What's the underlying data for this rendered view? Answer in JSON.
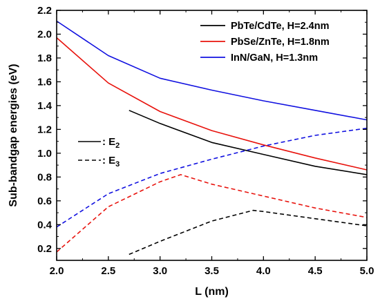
{
  "chart_data": {
    "type": "line",
    "xlabel": "L (nm)",
    "ylabel": "Sub-bandgap energies (eV)",
    "xlim": [
      2.0,
      5.0
    ],
    "ylim": [
      0.1,
      2.2
    ],
    "x_ticks": [
      "2.0",
      "2.5",
      "3.0",
      "3.5",
      "4.0",
      "4.5",
      "5.0"
    ],
    "y_ticks": [
      "0.2",
      "0.4",
      "0.6",
      "0.8",
      "1.0",
      "1.2",
      "1.4",
      "1.6",
      "1.8",
      "2.0",
      "2.2"
    ],
    "grid": false,
    "legend": {
      "placement": "top-right",
      "entries": [
        {
          "label": "PbTe/CdTe, H=2.4nm",
          "color": "#000000"
        },
        {
          "label": "PbSe/ZnTe, H=1.8nm",
          "color": "#e8120c"
        },
        {
          "label": "InN/GaN, H=1.3nm",
          "color": "#1010e0"
        }
      ]
    },
    "line_style_legend": {
      "placement": "middle-left",
      "entries": [
        {
          "label": ": E",
          "subscript": "2",
          "style": "solid"
        },
        {
          "label": ": E",
          "subscript": "3",
          "style": "dashed"
        }
      ]
    },
    "series": [
      {
        "name": "PbTe/CdTe, H=2.4nm",
        "level": "E2",
        "color": "#000000",
        "style": "solid",
        "x": [
          2.7,
          3.0,
          3.5,
          4.0,
          4.5,
          5.0
        ],
        "y": [
          1.36,
          1.25,
          1.09,
          0.99,
          0.89,
          0.82
        ]
      },
      {
        "name": "PbTe/CdTe, H=2.4nm",
        "level": "E3",
        "color": "#000000",
        "style": "dashed",
        "x": [
          2.7,
          3.0,
          3.5,
          3.9,
          4.0,
          4.5,
          5.0
        ],
        "y": [
          0.15,
          0.26,
          0.43,
          0.52,
          0.51,
          0.45,
          0.39
        ]
      },
      {
        "name": "PbSe/ZnTe, H=1.8nm",
        "level": "E2",
        "color": "#e8120c",
        "style": "solid",
        "x": [
          2.0,
          2.5,
          3.0,
          3.5,
          4.0,
          4.5,
          5.0
        ],
        "y": [
          1.97,
          1.59,
          1.35,
          1.19,
          1.07,
          0.96,
          0.86
        ]
      },
      {
        "name": "PbSe/ZnTe, H=1.8nm",
        "level": "E3",
        "color": "#e8120c",
        "style": "dashed",
        "x": [
          2.0,
          2.5,
          3.0,
          3.2,
          3.5,
          4.0,
          4.5,
          5.0
        ],
        "y": [
          0.17,
          0.55,
          0.76,
          0.82,
          0.74,
          0.64,
          0.54,
          0.46
        ]
      },
      {
        "name": "InN/GaN, H=1.3nm",
        "level": "E2",
        "color": "#1010e0",
        "style": "solid",
        "x": [
          2.0,
          2.5,
          3.0,
          3.5,
          4.0,
          4.5,
          5.0
        ],
        "y": [
          2.11,
          1.82,
          1.63,
          1.53,
          1.44,
          1.36,
          1.28
        ]
      },
      {
        "name": "InN/GaN, H=1.3nm",
        "level": "E3",
        "color": "#1010e0",
        "style": "dashed",
        "x": [
          2.0,
          2.5,
          3.0,
          3.5,
          4.0,
          4.5,
          5.0
        ],
        "y": [
          0.38,
          0.66,
          0.83,
          0.95,
          1.06,
          1.15,
          1.21
        ]
      }
    ]
  }
}
